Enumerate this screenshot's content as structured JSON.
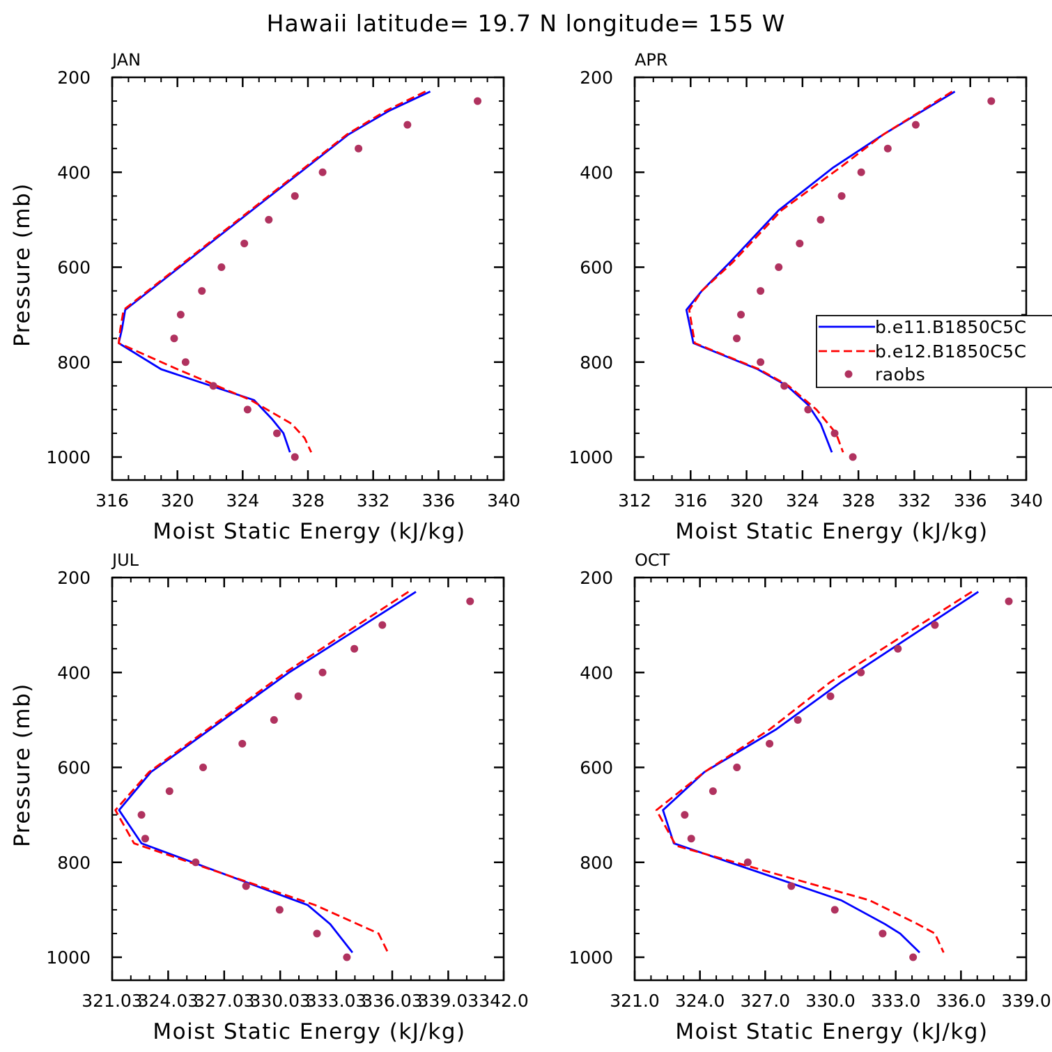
{
  "suptitle": "Hawaii  latitude= 19.7 N longitude= 155 W",
  "colors": {
    "model1": "#0000ff",
    "model2": "#ff0000",
    "raobs": "#b0325f"
  },
  "legend": {
    "placement": "inside APR panel, right edge, clipped by figure border",
    "entries": [
      {
        "label": "b.e11.B1850C5C",
        "style": "solid",
        "color": "#0000ff"
      },
      {
        "label": "b.e12.B1850C5C",
        "style": "dashed",
        "color": "#ff0000"
      },
      {
        "label": "raobs",
        "style": "marker",
        "color": "#b0325f"
      }
    ]
  },
  "chart_data": [
    {
      "type": "line",
      "title": "JAN",
      "xlabel": "Moist Static Energy (kJ/kg)",
      "ylabel": "Pressure (mb)",
      "xlim": [
        316,
        340
      ],
      "ylim": [
        1000,
        200
      ],
      "xticks": [
        316,
        320,
        324,
        328,
        332,
        336,
        340
      ],
      "xtick_labels": [
        "316",
        "320",
        "324",
        "328",
        "332",
        "336",
        "340"
      ],
      "yticks": [
        200,
        400,
        600,
        800,
        1000
      ],
      "ytick_labels": [
        "200",
        "400",
        "600",
        "800",
        "1000"
      ],
      "series": [
        {
          "name": "b.e11.B1850C5C",
          "type": "line",
          "style": "solid",
          "x": [
            335.5,
            333,
            330.5,
            316.8,
            316.6,
            316.4,
            319,
            324.7,
            325.8,
            326.5,
            326.9
          ],
          "y": [
            230,
            270,
            320,
            690,
            730,
            760,
            815,
            880,
            920,
            950,
            990
          ]
        },
        {
          "name": "b.e12.B1850C5C",
          "type": "line",
          "style": "dashed",
          "x": [
            335.2,
            332.8,
            330.4,
            316.7,
            316.5,
            316.4,
            320,
            324.5,
            327,
            327.8,
            328.2
          ],
          "y": [
            230,
            270,
            320,
            690,
            730,
            760,
            815,
            880,
            930,
            960,
            990
          ]
        },
        {
          "name": "raobs",
          "type": "scatter",
          "x": [
            338.4,
            334.1,
            331.1,
            328.9,
            327.2,
            325.6,
            324.1,
            322.7,
            321.5,
            320.2,
            319.8,
            320.5,
            322.2,
            324.3,
            326.1,
            327.2
          ],
          "y": [
            250,
            300,
            350,
            400,
            450,
            500,
            550,
            600,
            650,
            700,
            750,
            800,
            850,
            900,
            950,
            1000
          ]
        }
      ]
    },
    {
      "type": "line",
      "title": "APR",
      "xlabel": "Moist Static Energy (kJ/kg)",
      "ylabel": "",
      "xlim": [
        312,
        340
      ],
      "ylim": [
        1000,
        200
      ],
      "xticks": [
        312,
        316,
        320,
        324,
        328,
        332,
        336,
        340
      ],
      "xtick_labels": [
        "312",
        "316",
        "320",
        "324",
        "328",
        "332",
        "336",
        "340"
      ],
      "yticks": [
        200,
        400,
        600,
        800,
        1000
      ],
      "ytick_labels": [
        "200",
        "400",
        "600",
        "800",
        "1000"
      ],
      "series": [
        {
          "name": "b.e11.B1850C5C",
          "type": "line",
          "style": "solid",
          "x": [
            334.9,
            329.8,
            326.2,
            322.3,
            318.8,
            316.8,
            315.7,
            316.2,
            320.8,
            322.9,
            324.4,
            325.3,
            326.1
          ],
          "y": [
            230,
            320,
            390,
            480,
            590,
            650,
            690,
            760,
            815,
            850,
            890,
            930,
            990
          ]
        },
        {
          "name": "b.e12.B1850C5C",
          "type": "line",
          "style": "dashed",
          "x": [
            334.7,
            329.8,
            326.7,
            322.5,
            319,
            316.8,
            315.9,
            316.3,
            320.9,
            323,
            325,
            326.4,
            326.9
          ],
          "y": [
            230,
            320,
            390,
            480,
            590,
            650,
            690,
            760,
            815,
            850,
            900,
            950,
            990
          ]
        },
        {
          "name": "raobs",
          "type": "scatter",
          "x": [
            337.5,
            332.1,
            330.1,
            328.2,
            326.8,
            325.3,
            323.8,
            322.3,
            321.0,
            319.6,
            319.3,
            321.0,
            322.7,
            324.4,
            326.3,
            327.6
          ],
          "y": [
            250,
            300,
            350,
            400,
            450,
            500,
            550,
            600,
            650,
            700,
            750,
            800,
            850,
            900,
            950,
            1000
          ]
        }
      ]
    },
    {
      "type": "line",
      "title": "JUL",
      "xlabel": "Moist Static Energy (kJ/kg)",
      "ylabel": "Pressure (mb)",
      "xlim": [
        321.03,
        342.0
      ],
      "ylim": [
        1000,
        200
      ],
      "xticks": [
        321.03,
        324.03,
        327.03,
        330.03,
        333.03,
        336.03,
        339.03,
        342.0
      ],
      "xtick_labels": [
        "321.03",
        "324.03",
        "327.03",
        "330.03",
        "333.03",
        "336.03",
        "339.03",
        "342.0"
      ],
      "yticks": [
        200,
        400,
        600,
        800,
        1000
      ],
      "ytick_labels": [
        "200",
        "400",
        "600",
        "800",
        "1000"
      ],
      "series": [
        {
          "name": "b.e11.B1850C5C",
          "type": "line",
          "style": "solid",
          "x": [
            337.3,
            330.5,
            323.1,
            321.4,
            322.6,
            331.5,
            332.7,
            333.9
          ],
          "y": [
            230,
            400,
            610,
            690,
            760,
            890,
            930,
            990
          ]
        },
        {
          "name": "b.e12.B1850C5C",
          "type": "line",
          "style": "dashed",
          "x": [
            336.9,
            330.3,
            323.0,
            321.2,
            322.2,
            331.9,
            335.3,
            335.8
          ],
          "y": [
            230,
            400,
            610,
            690,
            760,
            890,
            950,
            990
          ]
        },
        {
          "name": "raobs",
          "type": "scatter",
          "x": [
            340.2,
            335.5,
            334.0,
            332.3,
            331.0,
            329.7,
            328.0,
            325.9,
            324.1,
            322.6,
            322.8,
            325.5,
            328.2,
            330.0,
            332.0,
            333.6
          ],
          "y": [
            250,
            300,
            350,
            400,
            450,
            500,
            550,
            600,
            650,
            700,
            750,
            800,
            850,
            900,
            950,
            1000
          ]
        }
      ]
    },
    {
      "type": "line",
      "title": "OCT",
      "xlabel": "Moist Static Energy (kJ/kg)",
      "ylabel": "",
      "xlim": [
        321.0,
        339.0
      ],
      "ylim": [
        1000,
        200
      ],
      "xticks": [
        321.0,
        324.0,
        327.0,
        330.0,
        333.0,
        336.0,
        339.0
      ],
      "xtick_labels": [
        "321.0",
        "324.0",
        "327.0",
        "330.0",
        "333.0",
        "336.0",
        "339.0"
      ],
      "yticks": [
        200,
        400,
        600,
        800,
        1000
      ],
      "ytick_labels": [
        "200",
        "400",
        "600",
        "800",
        "1000"
      ],
      "series": [
        {
          "name": "b.e11.B1850C5C",
          "type": "line",
          "style": "solid",
          "x": [
            336.8,
            330.5,
            327.5,
            324.2,
            322.3,
            322.8,
            330.5,
            332.5,
            333.2,
            334.1
          ],
          "y": [
            230,
            420,
            520,
            610,
            690,
            760,
            880,
            930,
            950,
            990
          ]
        },
        {
          "name": "b.e12.B1850C5C",
          "type": "line",
          "style": "dashed",
          "x": [
            336.5,
            330.0,
            327.2,
            324.2,
            322.0,
            322.9,
            331.8,
            334.0,
            334.8,
            335.2
          ],
          "y": [
            230,
            420,
            520,
            610,
            690,
            765,
            880,
            930,
            950,
            990
          ]
        },
        {
          "name": "raobs",
          "type": "scatter",
          "x": [
            338.2,
            334.8,
            333.1,
            331.4,
            330.0,
            328.5,
            327.2,
            325.7,
            324.6,
            323.3,
            323.6,
            326.2,
            328.2,
            330.2,
            332.4,
            333.8
          ],
          "y": [
            250,
            300,
            350,
            400,
            450,
            500,
            550,
            600,
            650,
            700,
            750,
            800,
            850,
            900,
            950,
            1000
          ]
        }
      ]
    }
  ]
}
